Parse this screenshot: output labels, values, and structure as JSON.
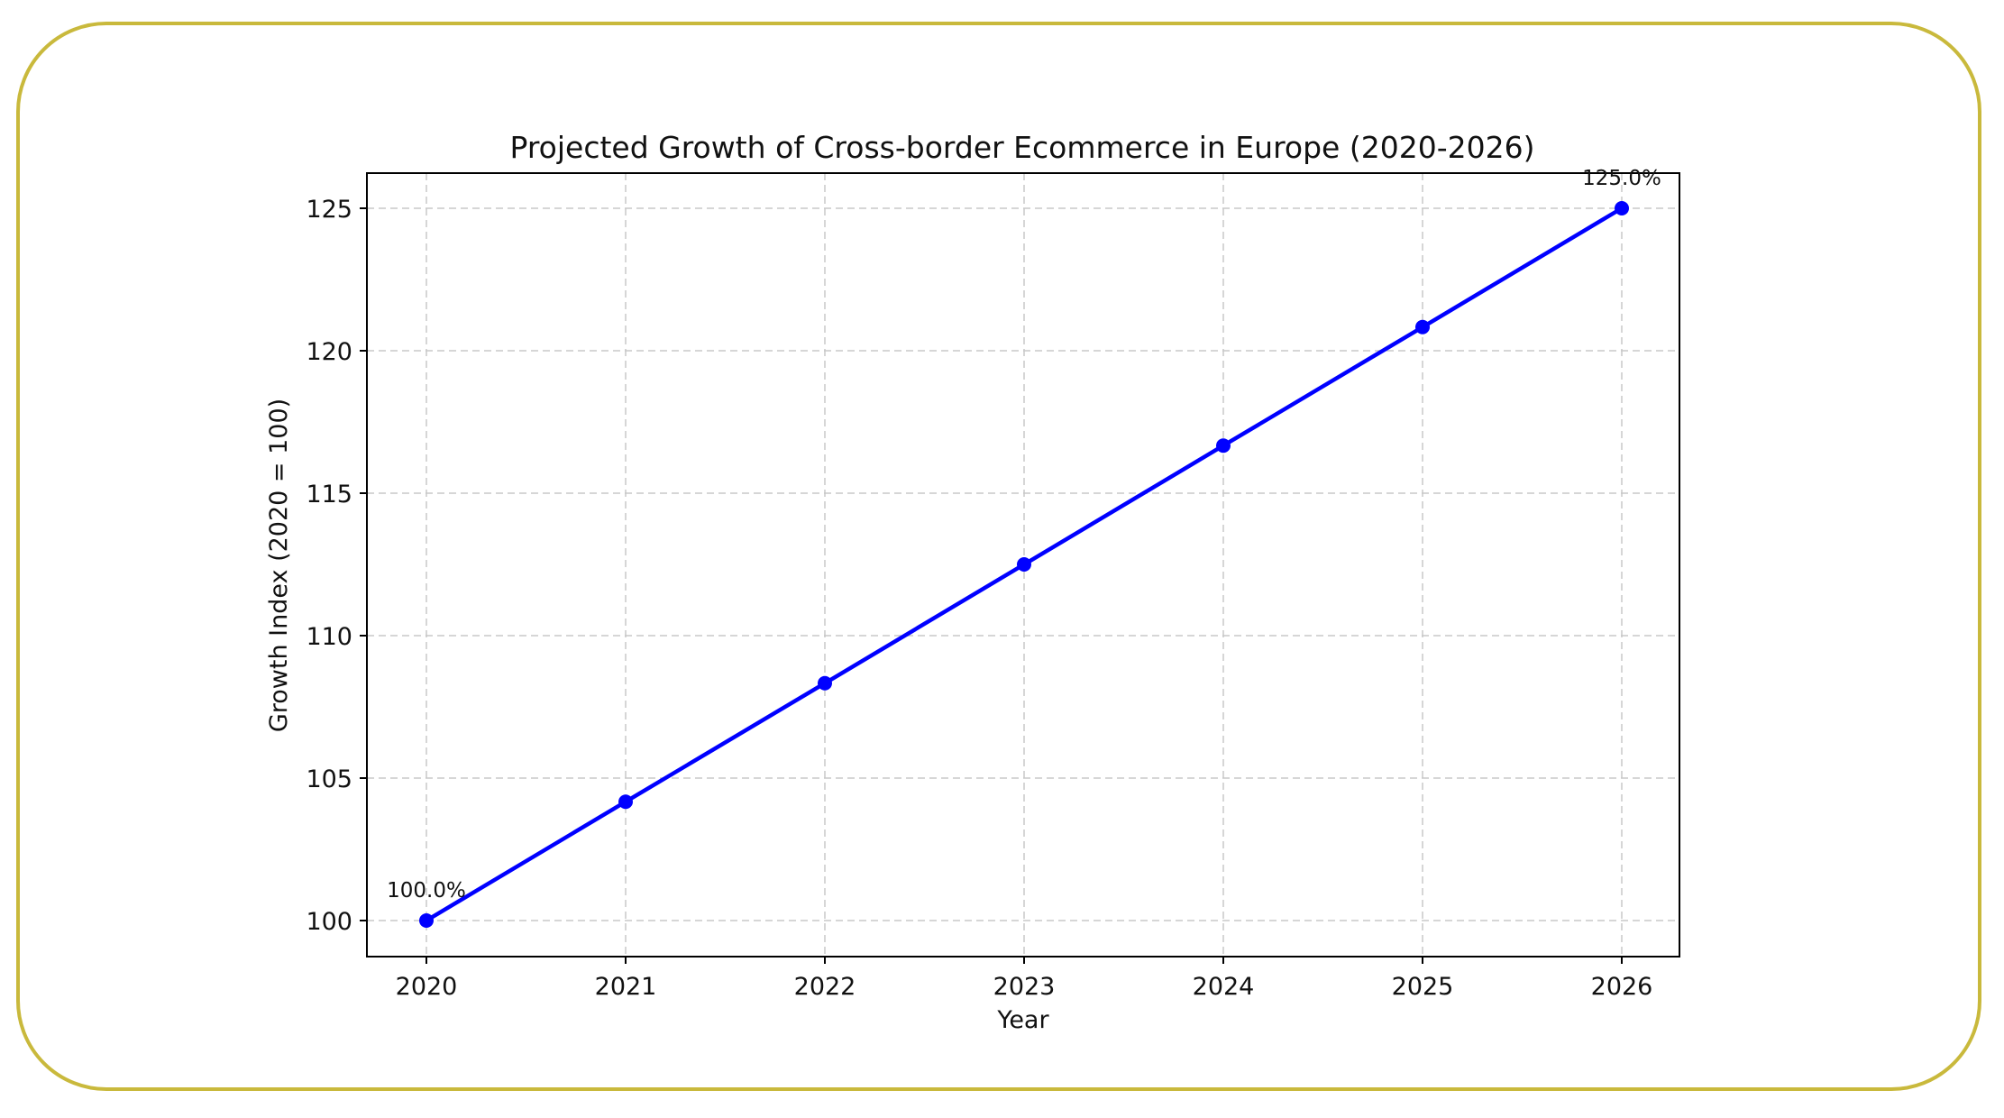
{
  "chart_data": {
    "type": "line",
    "title": "Projected Growth of Cross-border Ecommerce in Europe (2020-2026)",
    "xlabel": "Year",
    "ylabel": "Growth Index (2020 = 100)",
    "x": [
      2020,
      2021,
      2022,
      2023,
      2024,
      2025,
      2026
    ],
    "x_tick_labels": [
      "2020",
      "2021",
      "2022",
      "2023",
      "2024",
      "2025",
      "2026"
    ],
    "y_ticks": [
      100,
      105,
      110,
      115,
      120,
      125
    ],
    "y_tick_labels": [
      "100",
      "105",
      "110",
      "115",
      "120",
      "125"
    ],
    "ylim": [
      98.75,
      126.3
    ],
    "xlim": [
      2019.7,
      2026.3
    ],
    "grid": true,
    "series": [
      {
        "values": [
          100.0,
          104.17,
          108.33,
          112.5,
          116.67,
          120.83,
          125.0
        ],
        "color": "#0000ff",
        "marker": "circle"
      }
    ],
    "annotations": [
      {
        "x": 2020,
        "y": 100.0,
        "text": "100.0%"
      },
      {
        "x": 2026,
        "y": 125.0,
        "text": "125.0%"
      }
    ]
  },
  "frame_color": "#c9b93c"
}
